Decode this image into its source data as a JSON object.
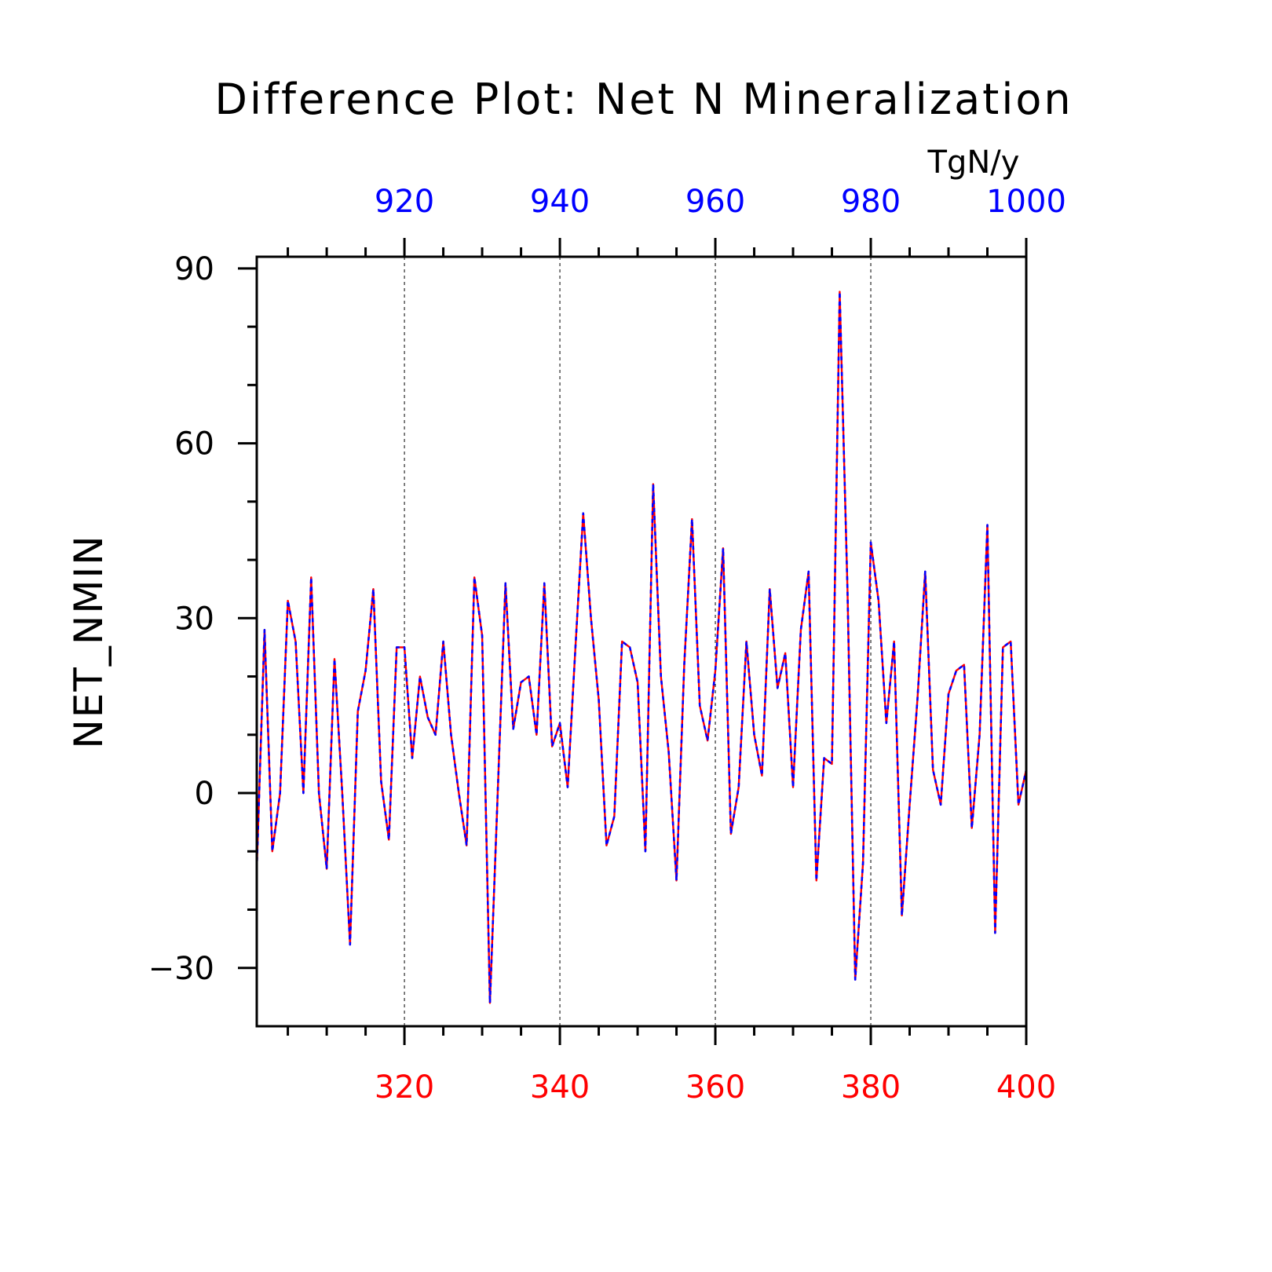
{
  "chart_data": {
    "type": "line",
    "title": "Difference Plot: Net N Mineralization",
    "units": "TgN/y",
    "ylabel": "NET_NMIN",
    "xlabel": "",
    "grid": "dashed vertical lines at major x ticks",
    "xlim_bottom": [
      301,
      400
    ],
    "xlim_top": [
      901,
      1000
    ],
    "ylim": [
      -40,
      92
    ],
    "yticks": [
      -30,
      0,
      30,
      60,
      90
    ],
    "ytick_labels": [
      "−30",
      "0",
      "30",
      "60",
      "90"
    ],
    "xticks_bottom": [
      320,
      340,
      360,
      380,
      400
    ],
    "xticks_top": [
      920,
      940,
      960,
      980,
      1000
    ],
    "colors": {
      "bottom_axis": "#ff0000",
      "top_axis": "#0000ff",
      "series_a": "#ff0000",
      "series_b": "#0000ff"
    },
    "x": [
      301,
      302,
      303,
      304,
      305,
      306,
      307,
      308,
      309,
      310,
      311,
      312,
      313,
      314,
      315,
      316,
      317,
      318,
      319,
      320,
      321,
      322,
      323,
      324,
      325,
      326,
      327,
      328,
      329,
      330,
      331,
      332,
      333,
      334,
      335,
      336,
      337,
      338,
      339,
      340,
      341,
      342,
      343,
      344,
      345,
      346,
      347,
      348,
      349,
      350,
      351,
      352,
      353,
      354,
      355,
      356,
      357,
      358,
      359,
      360,
      361,
      362,
      363,
      364,
      365,
      366,
      367,
      368,
      369,
      370,
      371,
      372,
      373,
      374,
      375,
      376,
      377,
      378,
      379,
      380,
      381,
      382,
      383,
      384,
      385,
      386,
      387,
      388,
      389,
      390,
      391,
      392,
      393,
      394,
      395,
      396,
      397,
      398,
      399,
      400
    ],
    "series": [
      {
        "values": [
          -13,
          28,
          -10,
          0,
          33,
          26,
          0,
          37,
          0,
          -13,
          23,
          0,
          -26,
          14,
          21,
          35,
          2,
          -8,
          25,
          25,
          6,
          20,
          13,
          10,
          26,
          10,
          0,
          -9,
          37,
          27,
          -36,
          0,
          36,
          11,
          19,
          20,
          10,
          36,
          8,
          12,
          1,
          25,
          48,
          30,
          16,
          -9,
          -4,
          26,
          25,
          19,
          -10,
          53,
          20,
          7,
          -15,
          22,
          47,
          15,
          9,
          21,
          42,
          -7,
          1,
          26,
          10,
          3,
          35,
          18,
          24,
          1,
          28,
          38,
          -15,
          6,
          5,
          86,
          35,
          -32,
          -12,
          43,
          33,
          12,
          26,
          -21,
          -2,
          16,
          38,
          4,
          -2,
          17,
          21,
          22,
          -6,
          10,
          46,
          -24,
          25,
          26,
          -2,
          4
        ]
      },
      {
        "values": [
          -13,
          28,
          -10,
          0,
          33,
          26,
          0,
          37,
          0,
          -13,
          23,
          0,
          -26,
          14,
          21,
          35,
          2,
          -8,
          25,
          25,
          6,
          20,
          13,
          10,
          26,
          10,
          0,
          -9,
          37,
          27,
          -36,
          0,
          36,
          11,
          19,
          20,
          10,
          36,
          8,
          12,
          1,
          25,
          48,
          30,
          16,
          -9,
          -4,
          26,
          25,
          19,
          -10,
          53,
          20,
          7,
          -15,
          22,
          47,
          15,
          9,
          21,
          42,
          -7,
          1,
          26,
          10,
          3,
          35,
          18,
          24,
          1,
          28,
          38,
          -15,
          6,
          5,
          86,
          35,
          -32,
          -12,
          43,
          33,
          12,
          26,
          -21,
          -2,
          16,
          38,
          4,
          -2,
          17,
          21,
          22,
          -6,
          10,
          46,
          -24,
          25,
          26,
          -2,
          4
        ]
      }
    ]
  }
}
